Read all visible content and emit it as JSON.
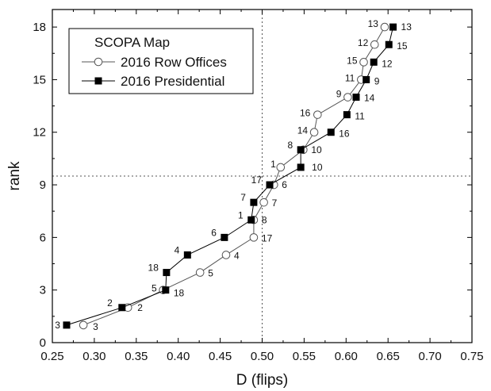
{
  "chart_data": {
    "type": "scatter",
    "title": "",
    "xlabel": "D (flips)",
    "ylabel": "rank",
    "xlim": [
      0.25,
      0.75
    ],
    "ylim": [
      0,
      19
    ],
    "x_ticks": [
      "0.25",
      "0.30",
      "0.35",
      "0.40",
      "0.45",
      "0.50",
      "0.55",
      "0.60",
      "0.65",
      "0.70",
      "0.75"
    ],
    "y_ticks": [
      "0",
      "3",
      "6",
      "9",
      "12",
      "15",
      "18"
    ],
    "grid": false,
    "reference_lines": {
      "x": 0.5,
      "y": 9.5
    },
    "legend": {
      "title": "SCOPA Map",
      "placement": "top-left"
    },
    "series": [
      {
        "name": "2016 Row Offices",
        "marker": "open-circle",
        "color": "#555555",
        "points": [
          {
            "x": 0.287,
            "y": 1,
            "label": "3"
          },
          {
            "x": 0.34,
            "y": 2,
            "label": "2"
          },
          {
            "x": 0.382,
            "y": 3,
            "label": "5"
          },
          {
            "x": 0.426,
            "y": 4,
            "label": "5"
          },
          {
            "x": 0.457,
            "y": 5,
            "label": "4"
          },
          {
            "x": 0.49,
            "y": 6,
            "label": "17"
          },
          {
            "x": 0.49,
            "y": 7,
            "label": "8"
          },
          {
            "x": 0.502,
            "y": 8,
            "label": "7"
          },
          {
            "x": 0.514,
            "y": 9,
            "label": "6"
          },
          {
            "x": 0.522,
            "y": 10,
            "label": "1"
          },
          {
            "x": 0.549,
            "y": 11,
            "label": "10"
          },
          {
            "x": 0.562,
            "y": 12,
            "label": "14"
          },
          {
            "x": 0.566,
            "y": 13,
            "label": "16"
          },
          {
            "x": 0.602,
            "y": 14,
            "label": "9"
          },
          {
            "x": 0.618,
            "y": 15,
            "label": "11"
          },
          {
            "x": 0.621,
            "y": 16,
            "label": "15"
          },
          {
            "x": 0.634,
            "y": 17,
            "label": "12"
          },
          {
            "x": 0.646,
            "y": 18,
            "label": "13"
          }
        ]
      },
      {
        "name": "2016 Presidential",
        "marker": "filled-square",
        "color": "#000000",
        "points": [
          {
            "x": 0.267,
            "y": 1,
            "label": "3"
          },
          {
            "x": 0.333,
            "y": 2,
            "label": "2"
          },
          {
            "x": 0.385,
            "y": 3,
            "label": "18"
          },
          {
            "x": 0.386,
            "y": 4,
            "label": "18"
          },
          {
            "x": 0.411,
            "y": 5,
            "label": "4"
          },
          {
            "x": 0.455,
            "y": 6,
            "label": "6"
          },
          {
            "x": 0.487,
            "y": 7,
            "label": "1"
          },
          {
            "x": 0.49,
            "y": 8,
            "label": "7"
          },
          {
            "x": 0.509,
            "y": 9,
            "label": "17"
          },
          {
            "x": 0.546,
            "y": 10,
            "label": "10"
          },
          {
            "x": 0.546,
            "y": 11,
            "label": "8"
          },
          {
            "x": 0.582,
            "y": 12,
            "label": "16"
          },
          {
            "x": 0.601,
            "y": 13,
            "label": "11"
          },
          {
            "x": 0.612,
            "y": 14,
            "label": "14"
          },
          {
            "x": 0.624,
            "y": 15,
            "label": "9"
          },
          {
            "x": 0.633,
            "y": 16,
            "label": "12"
          },
          {
            "x": 0.651,
            "y": 17,
            "label": "15"
          },
          {
            "x": 0.656,
            "y": 18,
            "label": "13"
          }
        ]
      }
    ]
  }
}
